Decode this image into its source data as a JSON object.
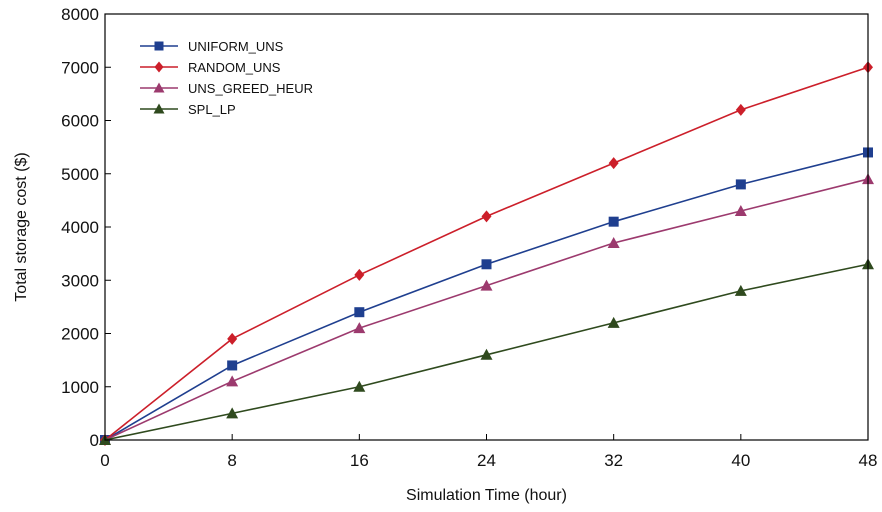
{
  "chart_data": {
    "type": "line",
    "title": "",
    "xlabel": "Simulation Time (hour)",
    "ylabel": "Total storage cost ($)",
    "x": [
      0,
      8,
      16,
      24,
      32,
      40,
      48
    ],
    "x_ticks": [
      "0",
      "8",
      "16",
      "24",
      "32",
      "40",
      "48"
    ],
    "y_ticks": [
      "0",
      "1000",
      "2000",
      "3000",
      "4000",
      "5000",
      "6000",
      "7000",
      "8000"
    ],
    "xlim": [
      0,
      48
    ],
    "ylim": [
      0,
      8000
    ],
    "grid": false,
    "legend_position": "top-left",
    "series": [
      {
        "name": "UNIFORM_UNS",
        "color": "#1f3f8f",
        "marker": "square",
        "values": [
          0,
          1400,
          2400,
          3300,
          4100,
          4800,
          5400
        ]
      },
      {
        "name": "RANDOM_UNS",
        "color": "#cc1f2a",
        "marker": "diamond",
        "values": [
          0,
          1900,
          3100,
          4200,
          5200,
          6200,
          7000
        ]
      },
      {
        "name": "UNS_GREED_HEUR",
        "color": "#9c3a6e",
        "marker": "triangle",
        "values": [
          0,
          1100,
          2100,
          2900,
          3700,
          4300,
          4900
        ]
      },
      {
        "name": "SPL_LP",
        "color": "#2f4a1e",
        "marker": "triangle",
        "values": [
          0,
          500,
          1000,
          1600,
          2200,
          2800,
          3300
        ]
      }
    ]
  }
}
